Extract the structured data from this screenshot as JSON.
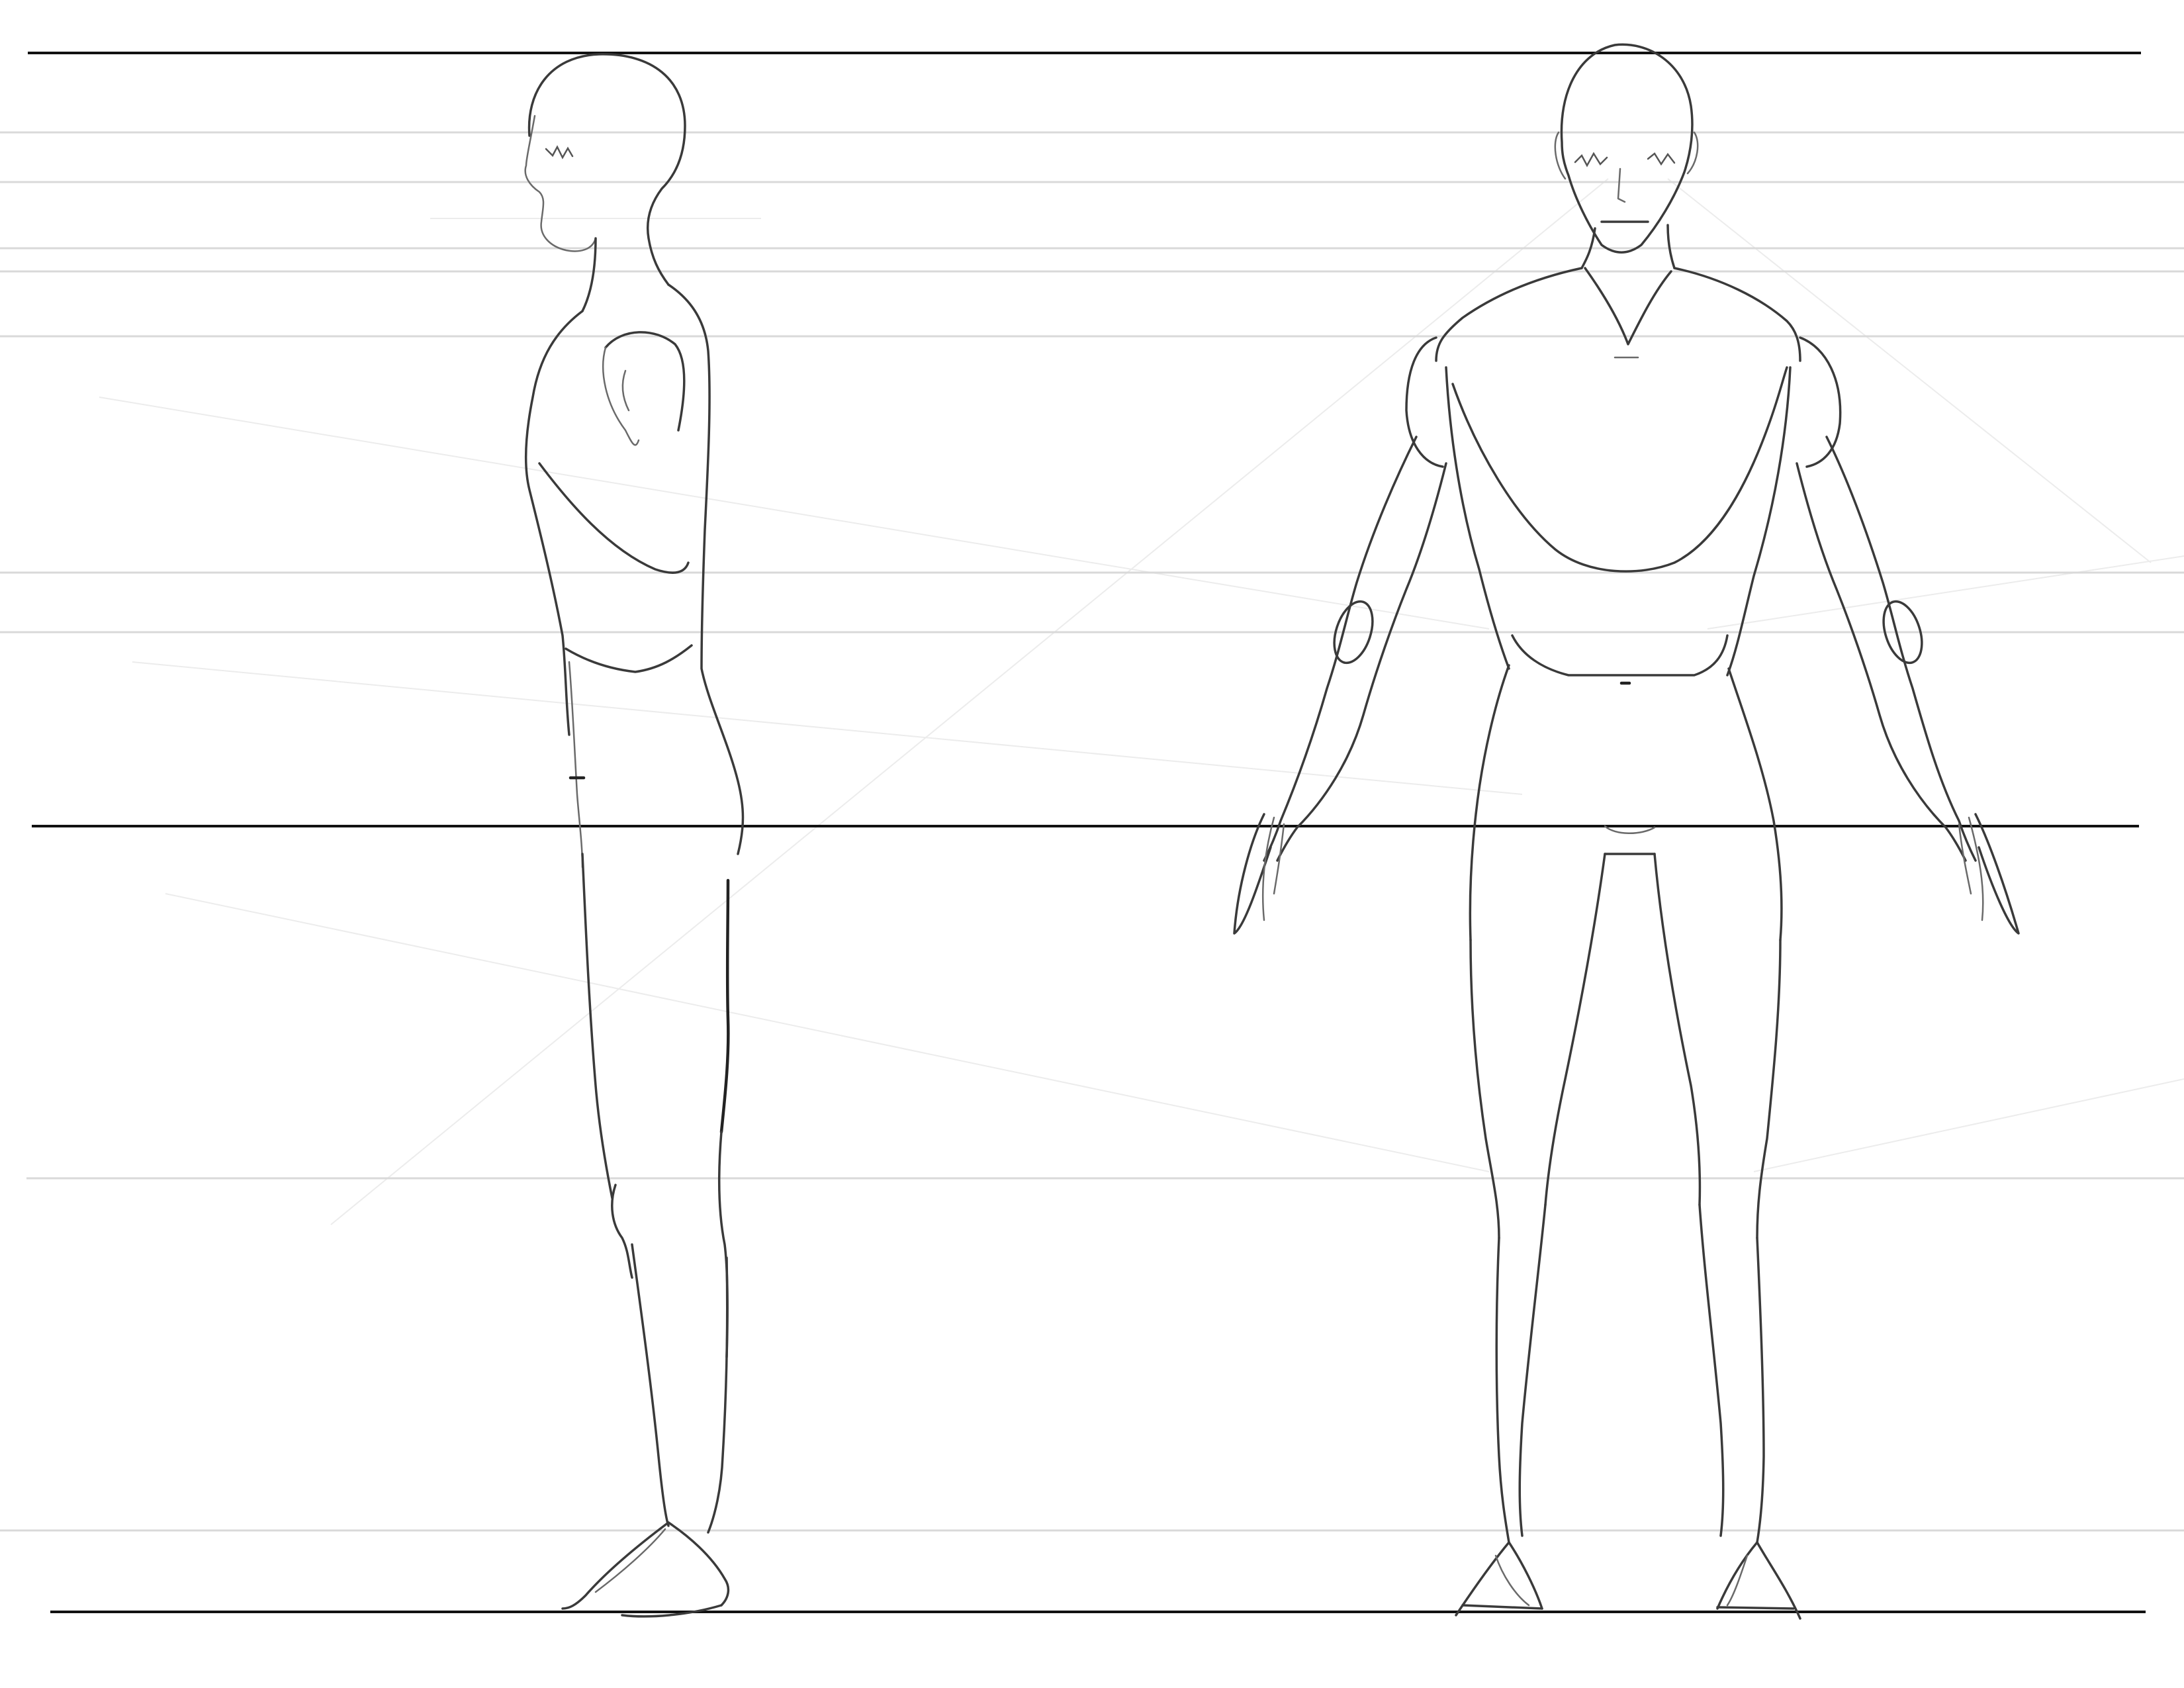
{
  "canvas": {
    "background": "#ffffff",
    "ink_color": "#3a3a3a",
    "major_guide_color": "#111111",
    "minor_guide_color": "#d9d9d9"
  },
  "views": [
    "side-view-figure",
    "front-view-figure"
  ]
}
